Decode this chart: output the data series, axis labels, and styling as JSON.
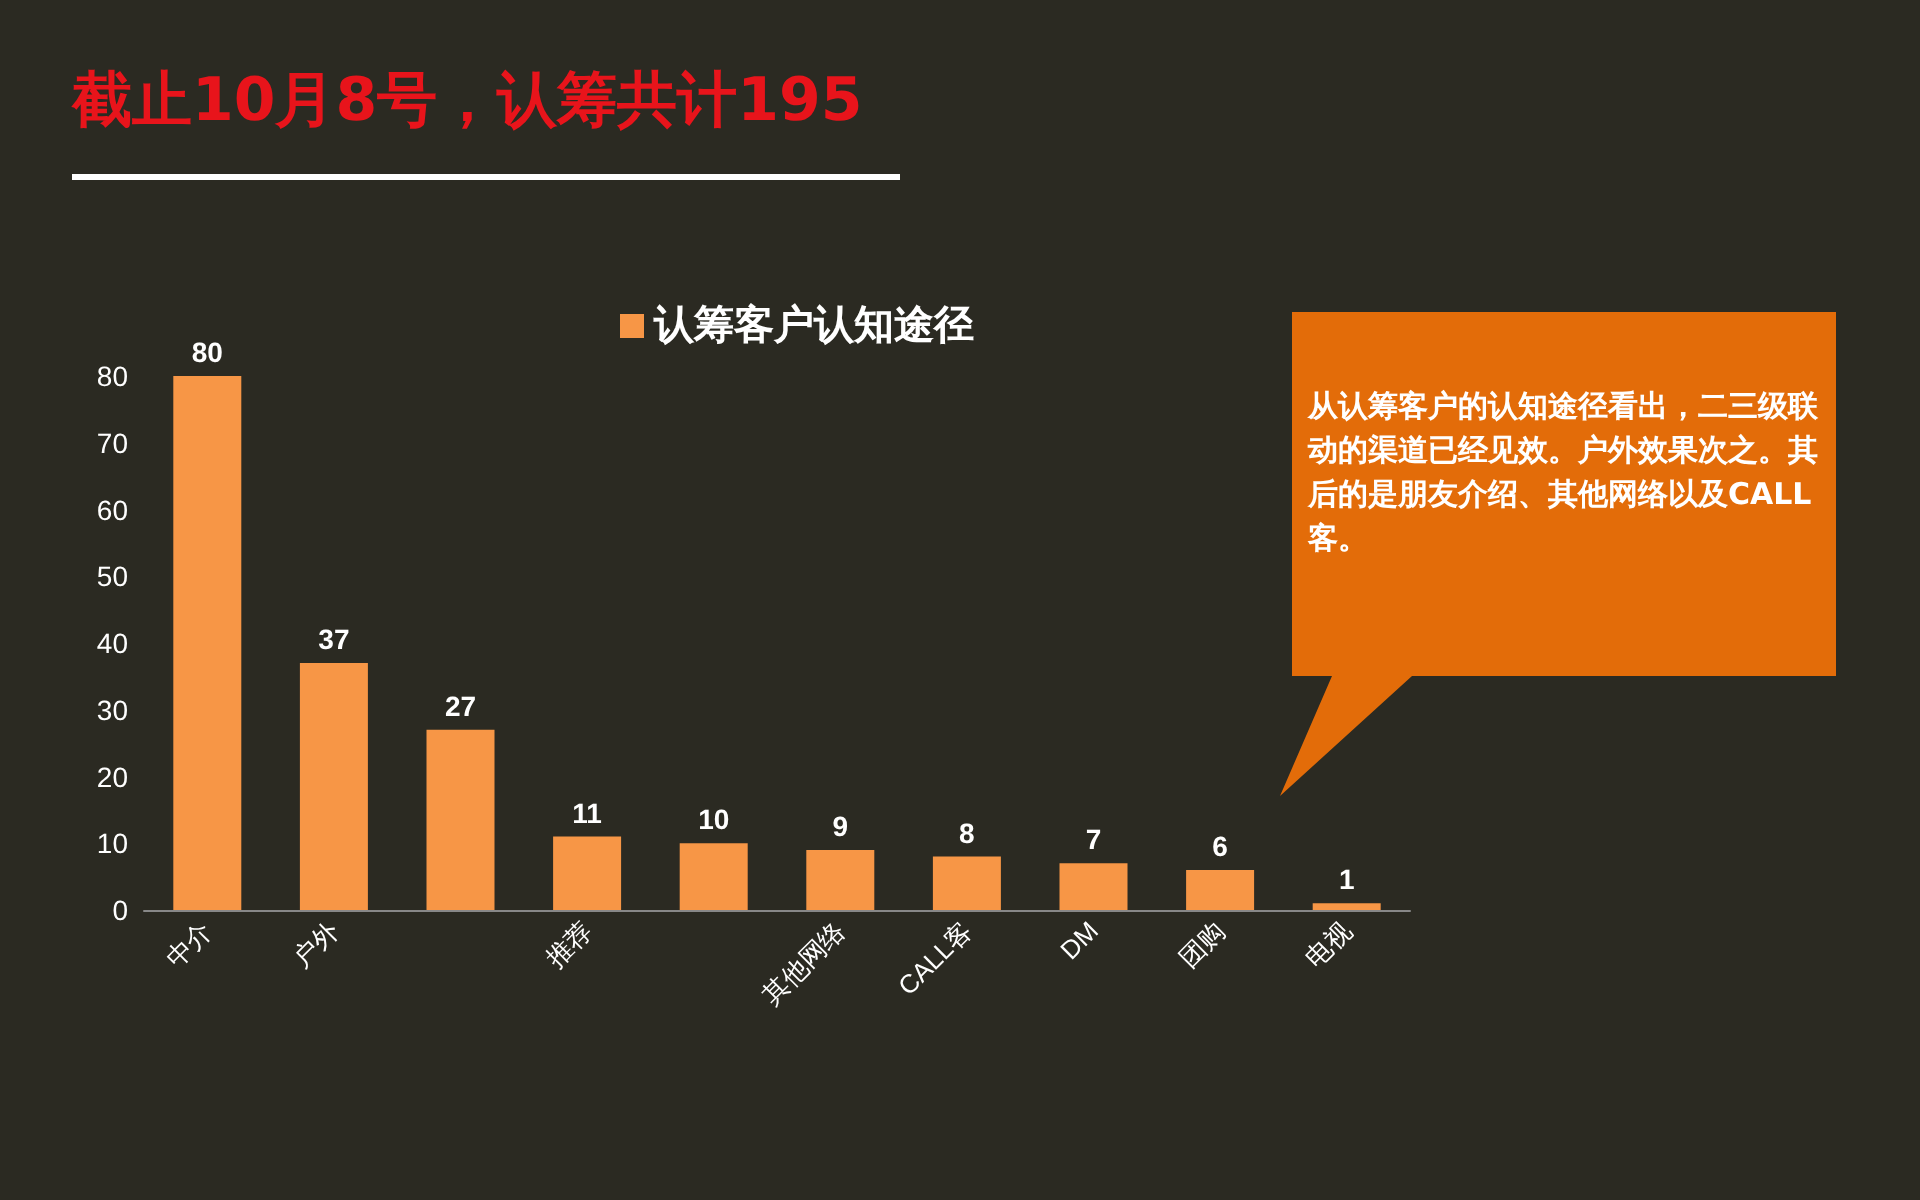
{
  "chart_data": {
    "type": "bar",
    "title": "截止10月8号，认筹共计195",
    "categories": [
      "中介",
      "户外",
      null,
      "推荐",
      null,
      "其他网络",
      "CALL客",
      "DM",
      "团购",
      "电视"
    ],
    "series": [
      {
        "name": "认筹客户认知途径",
        "color": "#f79646",
        "values": [
          80,
          37,
          27,
          11,
          10,
          9,
          8,
          7,
          6,
          1
        ]
      }
    ],
    "ylim": [
      0,
      80
    ],
    "yticks": [
      0,
      10,
      20,
      30,
      40,
      50,
      60,
      70,
      80
    ],
    "data_labels": true,
    "legend": "top",
    "annotations": [
      "从认筹客户的认知途径看出，二三级联动的渠道已经见效。户外效果次之。其后的是朋友介绍、其他网络以及CALL客。"
    ]
  }
}
